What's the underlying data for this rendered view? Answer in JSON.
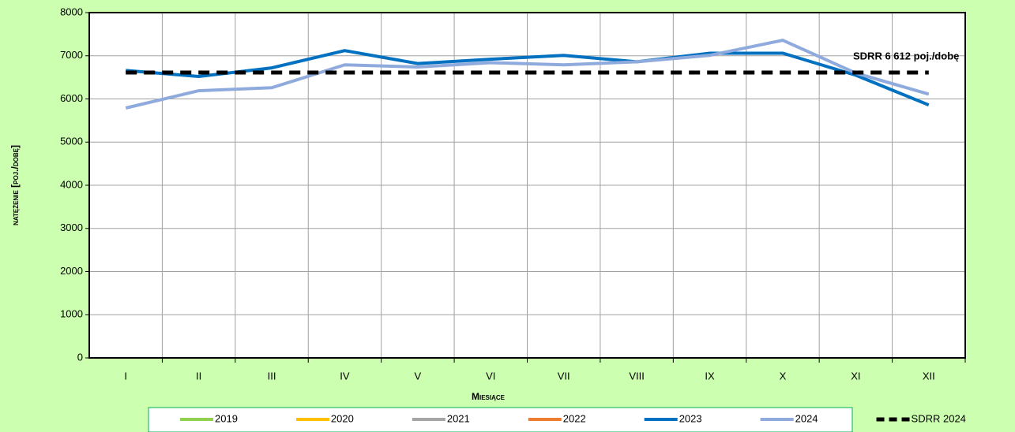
{
  "chart_data": {
    "type": "line",
    "y_axis_label": "natężenie [poj./dobę]",
    "x_axis_label": "Miesiące",
    "annotation": "SDRR 6 612 poj./dobę",
    "categories": [
      "I",
      "II",
      "III",
      "IV",
      "V",
      "VI",
      "VII",
      "VIII",
      "IX",
      "X",
      "XI",
      "XII"
    ],
    "series": [
      {
        "name": "2019",
        "color": "#92d050",
        "values": [
          null,
          null,
          null,
          null,
          null,
          null,
          null,
          null,
          null,
          null,
          null,
          null
        ]
      },
      {
        "name": "2020",
        "color": "#ffc000",
        "values": [
          null,
          null,
          null,
          null,
          null,
          null,
          null,
          null,
          null,
          null,
          null,
          null
        ]
      },
      {
        "name": "2021",
        "color": "#a5a5a5",
        "values": [
          null,
          null,
          null,
          null,
          null,
          null,
          null,
          null,
          null,
          null,
          null,
          null
        ]
      },
      {
        "name": "2022",
        "color": "#ed7d31",
        "values": [
          null,
          null,
          null,
          null,
          null,
          null,
          null,
          null,
          null,
          null,
          null,
          null
        ]
      },
      {
        "name": "2023",
        "color": "#0070c0",
        "values": [
          6660,
          6520,
          6720,
          7120,
          6820,
          6920,
          7010,
          6860,
          7060,
          7060,
          6550,
          5860
        ]
      },
      {
        "name": "2024",
        "color": "#8faadc",
        "values": [
          5790,
          6190,
          6260,
          6790,
          6740,
          6840,
          6790,
          6860,
          7010,
          7360,
          6600,
          6110
        ]
      },
      {
        "name": "SDRR 2024",
        "color": "#000000",
        "dashed": true,
        "values": [
          6612,
          6612,
          6612,
          6612,
          6612,
          6612,
          6612,
          6612,
          6612,
          6612,
          6612,
          6612
        ]
      }
    ],
    "ylim": [
      0,
      8000
    ],
    "yticks": [
      0,
      1000,
      2000,
      3000,
      4000,
      5000,
      6000,
      7000,
      8000
    ],
    "grid": true
  }
}
